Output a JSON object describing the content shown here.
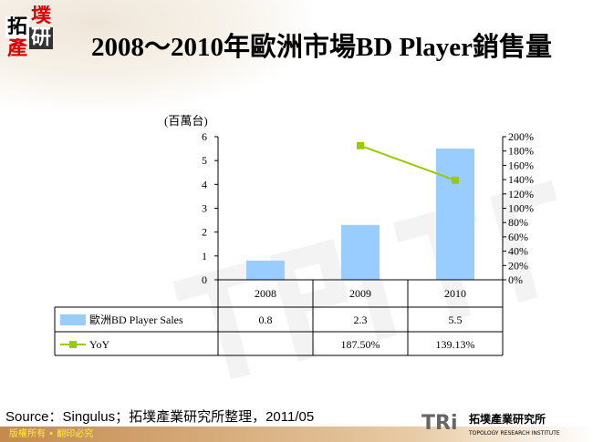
{
  "logo": {
    "chars": [
      "拓",
      "墣",
      "產",
      "研"
    ]
  },
  "title": "2008～2010年歐洲市場BD Player銷售量",
  "chart_data": {
    "type": "bar+line",
    "unit_label": "(百萬台)",
    "categories": [
      "2008",
      "2009",
      "2010"
    ],
    "y_left": {
      "range": [
        0,
        6
      ],
      "ticks": [
        "0",
        "1",
        "2",
        "3",
        "4",
        "5",
        "6"
      ]
    },
    "y_right": {
      "range": [
        0,
        200
      ],
      "ticks": [
        "0%",
        "20%",
        "40%",
        "60%",
        "80%",
        "100%",
        "120%",
        "140%",
        "160%",
        "180%",
        "200%"
      ]
    },
    "series": [
      {
        "name": "歐洲BD Player Sales",
        "type": "bar",
        "axis": "left",
        "values": [
          0.8,
          2.3,
          5.5
        ],
        "labels": [
          "0.8",
          "2.3",
          "5.5"
        ],
        "color": "#99ccff"
      },
      {
        "name": "YoY",
        "type": "line",
        "axis": "right",
        "values": [
          null,
          187.5,
          139.13
        ],
        "labels": [
          "",
          "187.50%",
          "139.13%"
        ],
        "color": "#99cc00"
      }
    ],
    "data_table": true
  },
  "source": "Source：Singulus；拓墣產業研究所整理，2011/05",
  "footer": {
    "copyright": "版權所有 • 翻印必究",
    "brand": "TRi",
    "brand_cn": "拓墣產業研究所",
    "brand_en": "TOPOLOGY RESEARCH INSTITUTE"
  }
}
